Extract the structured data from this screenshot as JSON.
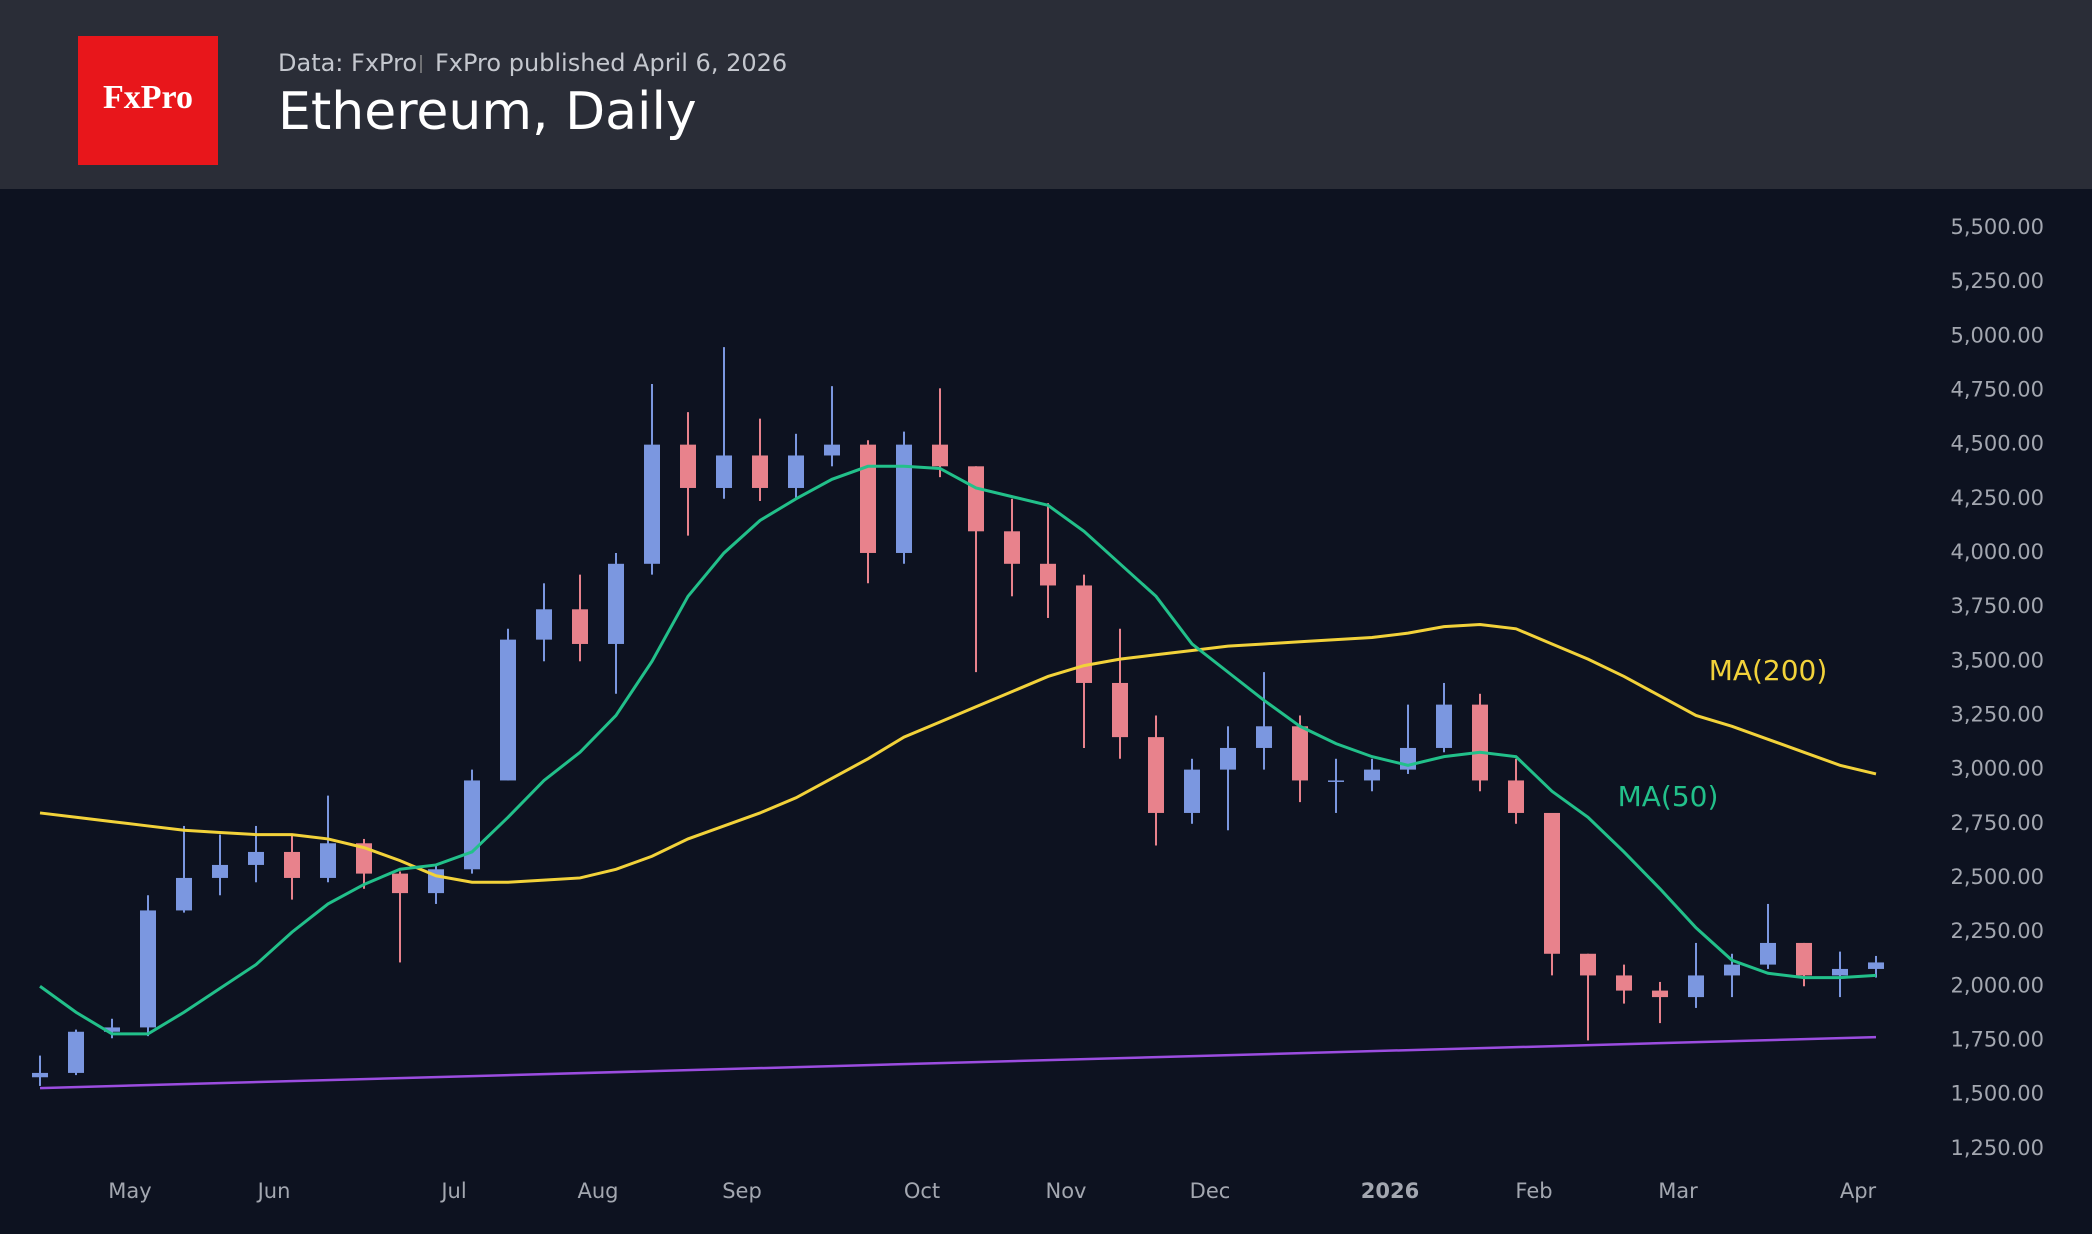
{
  "header": {
    "logo": "FxPro",
    "source": "Data: FxPro",
    "published": "FxPro published April 6, 2026",
    "title": "Ethereum, Daily"
  },
  "chart_data": {
    "type": "candlestick",
    "categories": [
      null,
      null,
      "May",
      null,
      null,
      null,
      "Jun",
      null,
      null,
      null,
      null,
      "Jul",
      null,
      null,
      null,
      "Aug",
      null,
      null,
      null,
      "Sep",
      null,
      null,
      null,
      null,
      "Oct",
      null,
      null,
      null,
      "Nov",
      null,
      null,
      null,
      "Dec",
      null,
      null,
      null,
      null,
      "2026",
      null,
      null,
      null,
      "Feb",
      null,
      null,
      null,
      "Mar",
      null,
      null,
      null,
      null,
      "Apr",
      null
    ],
    "open": [
      1580,
      1600,
      1790,
      1810,
      2350,
      2500,
      2560,
      2620,
      2500,
      2660,
      2520,
      2430,
      2540,
      2950,
      3600,
      3740,
      3580,
      3950,
      4500,
      4300,
      4450,
      4300,
      4450,
      4500,
      4000,
      4500,
      4400,
      4100,
      3950,
      3850,
      3400,
      3150,
      2800,
      3000,
      3100,
      3200,
      2950,
      2950,
      3000,
      3100,
      3300,
      2950,
      2800,
      2150,
      2050,
      1980,
      1950,
      2050,
      2100,
      2200,
      2050,
      2080
    ],
    "high": [
      1680,
      1800,
      1850,
      2420,
      2740,
      2700,
      2740,
      2700,
      2880,
      2680,
      2530,
      2560,
      3000,
      3650,
      3860,
      3900,
      4000,
      4780,
      4650,
      4950,
      4620,
      4550,
      4770,
      4520,
      4560,
      4760,
      4400,
      4250,
      4230,
      3900,
      3650,
      3250,
      3050,
      3200,
      3450,
      3250,
      3050,
      3050,
      3300,
      3400,
      3350,
      3050,
      2800,
      2150,
      2100,
      2020,
      2200,
      2150,
      2380,
      2200,
      2160,
      2140
    ],
    "low": [
      1540,
      1590,
      1760,
      1770,
      2340,
      2420,
      2480,
      2400,
      2480,
      2450,
      2110,
      2380,
      2520,
      2950,
      3500,
      3500,
      3350,
      3900,
      4080,
      4250,
      4240,
      4250,
      4400,
      3860,
      3950,
      4350,
      3450,
      3800,
      3700,
      3100,
      3050,
      2650,
      2750,
      2720,
      3000,
      2850,
      2800,
      2900,
      2980,
      3080,
      2900,
      2750,
      2050,
      1750,
      1920,
      1830,
      1900,
      1950,
      2080,
      2000,
      1950,
      2040
    ],
    "close": [
      1600,
      1790,
      1810,
      2350,
      2500,
      2560,
      2620,
      2500,
      2660,
      2520,
      2430,
      2540,
      2950,
      3600,
      3740,
      3580,
      3950,
      4500,
      4300,
      4450,
      4300,
      4450,
      4500,
      4000,
      4500,
      4400,
      4100,
      3950,
      3850,
      3400,
      3150,
      2800,
      3000,
      3100,
      3200,
      2950,
      2950,
      3000,
      3100,
      3300,
      2950,
      2800,
      2150,
      2050,
      1980,
      1950,
      2050,
      2100,
      2200,
      2050,
      2080,
      2110
    ],
    "up_color": "#7b97e0",
    "down_color": "#e8828c",
    "series": [
      {
        "name": "MA(200)",
        "color": "#f2d23a",
        "values": [
          2800,
          2780,
          2760,
          2740,
          2720,
          2710,
          2700,
          2700,
          2680,
          2640,
          2580,
          2510,
          2480,
          2480,
          2490,
          2500,
          2540,
          2600,
          2680,
          2740,
          2800,
          2870,
          2960,
          3050,
          3150,
          3220,
          3290,
          3360,
          3430,
          3480,
          3510,
          3530,
          3550,
          3570,
          3580,
          3590,
          3600,
          3610,
          3630,
          3660,
          3670,
          3650,
          3580,
          3510,
          3430,
          3340,
          3250,
          3200,
          3140,
          3080,
          3020,
          2980
        ]
      },
      {
        "name": "MA(50)",
        "color": "#22c08a",
        "values": [
          2000,
          1880,
          1780,
          1780,
          1880,
          1990,
          2100,
          2250,
          2380,
          2470,
          2540,
          2560,
          2620,
          2780,
          2950,
          3080,
          3250,
          3500,
          3800,
          4000,
          4150,
          4250,
          4340,
          4400,
          4400,
          4390,
          4300,
          4260,
          4220,
          4100,
          3950,
          3800,
          3580,
          3450,
          3320,
          3200,
          3120,
          3060,
          3020,
          3060,
          3080,
          3060,
          2900,
          2780,
          2620,
          2450,
          2270,
          2120,
          2060,
          2040,
          2040,
          2050
        ]
      }
    ],
    "support_line": {
      "color": "#9b4de0",
      "start": 1530,
      "end": 1765
    },
    "ylim": [
      1175,
      5680
    ],
    "yticks": [
      {
        "value": 1250,
        "label": "1,250.00"
      },
      {
        "value": 1500,
        "label": "1,500.00"
      },
      {
        "value": 1750,
        "label": "1,750.00"
      },
      {
        "value": 2000,
        "label": "2,000.00"
      },
      {
        "value": 2250,
        "label": "2,250.00"
      },
      {
        "value": 2500,
        "label": "2,500.00"
      },
      {
        "value": 2750,
        "label": "2,750.00"
      },
      {
        "value": 3000,
        "label": "3,000.00"
      },
      {
        "value": 3250,
        "label": "3,250.00"
      },
      {
        "value": 3500,
        "label": "3,500.00"
      },
      {
        "value": 3750,
        "label": "3,750.00"
      },
      {
        "value": 4000,
        "label": "4,000.00"
      },
      {
        "value": 4250,
        "label": "4,250.00"
      },
      {
        "value": 4500,
        "label": "4,500.00"
      },
      {
        "value": 4750,
        "label": "4,750.00"
      },
      {
        "value": 5000,
        "label": "5,000.00"
      },
      {
        "value": 5250,
        "label": "5,250.00"
      },
      {
        "value": 5500,
        "label": "5,500.00"
      }
    ]
  }
}
